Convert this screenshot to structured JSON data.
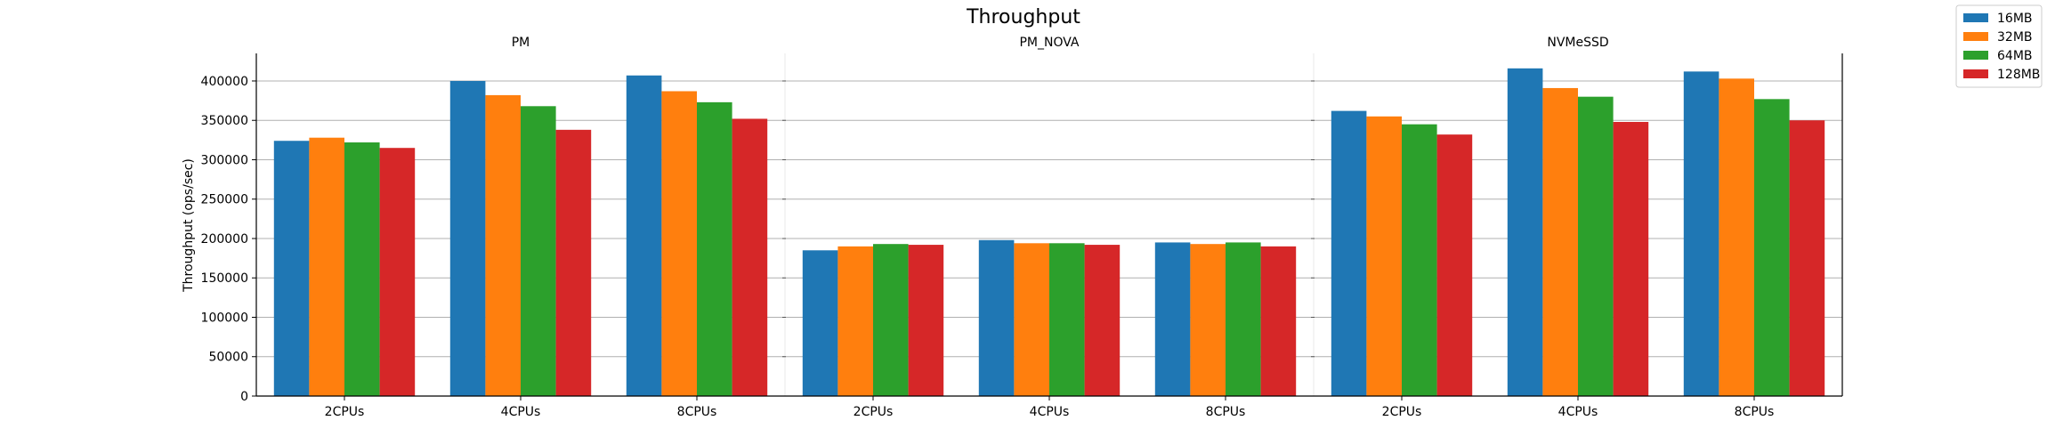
{
  "chart_data": {
    "type": "bar",
    "title": "Throughput",
    "ylabel": "Throughput (ops/sec)",
    "ylim": [
      0,
      435000
    ],
    "yticks": [
      0,
      50000,
      100000,
      150000,
      200000,
      250000,
      300000,
      350000,
      400000
    ],
    "grid": true,
    "legend_placement": "top-right",
    "series": [
      {
        "name": "16MB",
        "color": "#1f77b4"
      },
      {
        "name": "32MB",
        "color": "#ff7f0e"
      },
      {
        "name": "64MB",
        "color": "#2ca02c"
      },
      {
        "name": "128MB",
        "color": "#d62728"
      }
    ],
    "panels": [
      {
        "title": "PM",
        "categories": [
          "2CPUs",
          "4CPUs",
          "8CPUs"
        ],
        "values": [
          [
            324000,
            328000,
            322000,
            315000
          ],
          [
            400000,
            382000,
            368000,
            338000
          ],
          [
            407000,
            387000,
            373000,
            352000
          ]
        ]
      },
      {
        "title": "PM_NOVA",
        "categories": [
          "2CPUs",
          "4CPUs",
          "8CPUs"
        ],
        "values": [
          [
            185000,
            190000,
            193000,
            192000
          ],
          [
            198000,
            194000,
            194000,
            192000
          ],
          [
            195000,
            193000,
            195000,
            190000
          ]
        ]
      },
      {
        "title": "NVMeSSD",
        "categories": [
          "2CPUs",
          "4CPUs",
          "8CPUs"
        ],
        "values": [
          [
            362000,
            355000,
            345000,
            332000
          ],
          [
            416000,
            391000,
            380000,
            348000
          ],
          [
            412000,
            403000,
            377000,
            350000
          ]
        ]
      }
    ]
  }
}
